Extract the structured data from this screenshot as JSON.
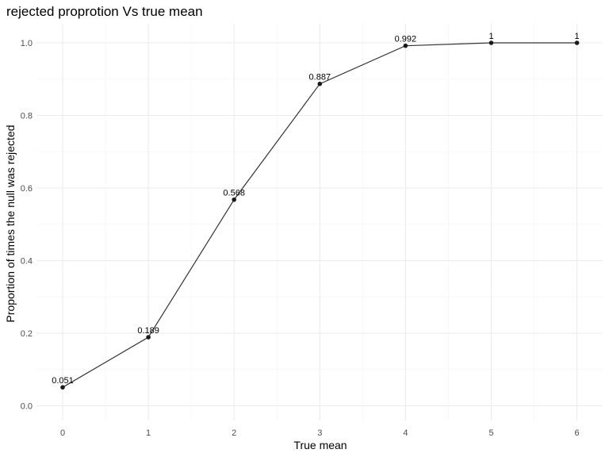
{
  "chart_data": {
    "type": "line",
    "title": "rejected proprotion Vs true mean",
    "xlabel": "True mean",
    "ylabel": "Proportion of times the null was rejected",
    "x": [
      0,
      1,
      2,
      3,
      4,
      5,
      6
    ],
    "y": [
      0.051,
      0.189,
      0.568,
      0.887,
      0.992,
      1,
      1
    ],
    "data_labels": [
      "0.051",
      "0.189",
      "0.568",
      "0.887",
      "0.992",
      "1",
      "1"
    ],
    "xticks": [
      0,
      1,
      2,
      3,
      4,
      5,
      6
    ],
    "xtick_labels": [
      "0",
      "1",
      "2",
      "3",
      "4",
      "5",
      "6"
    ],
    "yticks": [
      0,
      0.2,
      0.4,
      0.6,
      0.8,
      1.0
    ],
    "ytick_labels": [
      "0.0",
      "0.2",
      "0.4",
      "0.6",
      "0.8",
      "1.0"
    ],
    "xlim": [
      -0.3,
      6.3
    ],
    "ylim": [
      -0.0,
      1.05
    ],
    "grid": true,
    "colors": {
      "line": "#333333",
      "point": "#1a1a1a",
      "grid": "#ebebeb",
      "background": "#ffffff"
    }
  }
}
